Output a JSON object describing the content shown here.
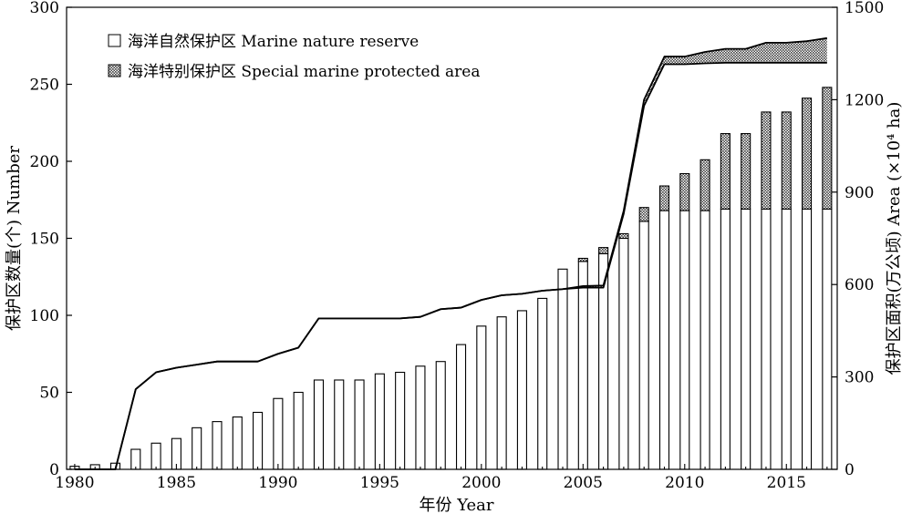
{
  "chart_data": {
    "type": "bar",
    "xlabel": "年份 Year",
    "ylabel_left": "保护区数量(个) Number",
    "ylabel_right": "保护区面积(万公顷) Area (×10⁴ ha)",
    "ylim_left": [
      0,
      300
    ],
    "ylim_right": [
      0,
      1500
    ],
    "yticks_left": [
      "0",
      "50",
      "100",
      "150",
      "200",
      "250",
      "300"
    ],
    "yticks_right": [
      "0",
      "300",
      "600",
      "900",
      "1200",
      "1500"
    ],
    "xlim": [
      1979.6,
      2017.5
    ],
    "xticks": [
      "1980",
      "1985",
      "1990",
      "1995",
      "2000",
      "2005",
      "2010",
      "2015"
    ],
    "legend_position": "top-left",
    "fill_colors": {
      "nature_reserve": "#ffffff",
      "special_area": "#a6a6a6",
      "outline": "#000000"
    },
    "years": [
      1980,
      1981,
      1982,
      1983,
      1984,
      1985,
      1986,
      1987,
      1988,
      1989,
      1990,
      1991,
      1992,
      1993,
      1994,
      1995,
      1996,
      1997,
      1998,
      1999,
      2000,
      2001,
      2002,
      2003,
      2004,
      2005,
      2006,
      2007,
      2008,
      2009,
      2010,
      2011,
      2012,
      2013,
      2014,
      2015,
      2016,
      2017
    ],
    "series": [
      {
        "name": "海洋自然保护区 Marine nature reserve",
        "kind": "bar-stack-base",
        "values": [
          2,
          3,
          4,
          13,
          17,
          20,
          27,
          31,
          34,
          37,
          46,
          50,
          58,
          58,
          58,
          62,
          63,
          67,
          70,
          81,
          93,
          99,
          103,
          111,
          130,
          135,
          140,
          150,
          161,
          168,
          168,
          168,
          169,
          169,
          169,
          169,
          169,
          169
        ]
      },
      {
        "name": "海洋特别保护区 Special marine protected area",
        "kind": "bar-stack-top",
        "values": [
          0,
          0,
          0,
          0,
          0,
          0,
          0,
          0,
          0,
          0,
          0,
          0,
          0,
          0,
          0,
          0,
          0,
          0,
          0,
          0,
          0,
          0,
          0,
          0,
          0,
          2,
          4,
          3,
          9,
          16,
          24,
          33,
          49,
          49,
          63,
          63,
          72,
          79
        ]
      },
      {
        "name": "",
        "kind": "area-line-nature",
        "axis": "right",
        "values": [
          0,
          0,
          0,
          260,
          315,
          330,
          340,
          350,
          350,
          350,
          375,
          395,
          490,
          490,
          490,
          490,
          490,
          495,
          520,
          525,
          550,
          565,
          570,
          580,
          585,
          590,
          590,
          830,
          1180,
          1315,
          1315,
          1318,
          1320,
          1320,
          1320,
          1320,
          1320,
          1320
        ]
      },
      {
        "name": "",
        "kind": "area-line-total",
        "axis": "right",
        "values": [
          0,
          0,
          0,
          260,
          315,
          330,
          340,
          350,
          350,
          350,
          375,
          395,
          490,
          490,
          490,
          490,
          490,
          495,
          520,
          525,
          550,
          565,
          570,
          580,
          585,
          595,
          597,
          840,
          1200,
          1340,
          1340,
          1355,
          1365,
          1365,
          1385,
          1385,
          1390,
          1400
        ]
      }
    ]
  }
}
